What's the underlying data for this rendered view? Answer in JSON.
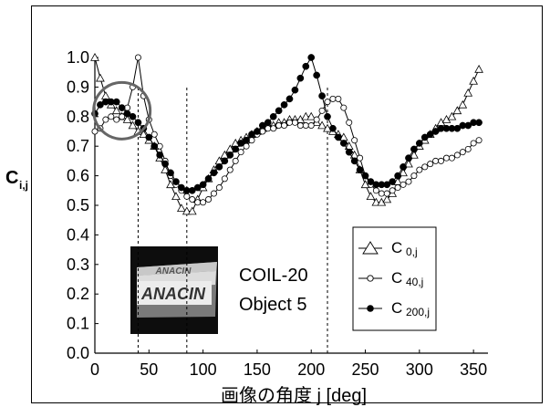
{
  "chart_data": {
    "type": "line",
    "title": "",
    "xlabel": "画像の角度 j [deg]",
    "ylabel_main": "C",
    "ylabel_sub": "i,j",
    "xlim": [
      0,
      360
    ],
    "ylim": [
      0,
      1.0
    ],
    "xticks": [
      "0",
      "50",
      "100",
      "150",
      "200",
      "250",
      "300",
      "350"
    ],
    "yticks": [
      "0.0",
      "0.1",
      "0.2",
      "0.3",
      "0.4",
      "0.5",
      "0.6",
      "0.7",
      "0.8",
      "0.9",
      "1.0"
    ],
    "vlines": [
      40,
      85,
      215
    ],
    "highlight_circle": {
      "x": 25,
      "y": 0.82
    },
    "annotation": [
      "COIL-20",
      "Object 5"
    ],
    "inset_image_text": [
      "ANACIN",
      "ANACIN"
    ],
    "legend_position": "right-lower",
    "series": [
      {
        "legend_main": "C",
        "legend_sub": "0,j",
        "marker": "triangle",
        "x": [
          0,
          5,
          10,
          15,
          20,
          25,
          30,
          35,
          40,
          45,
          50,
          55,
          60,
          65,
          70,
          75,
          80,
          85,
          90,
          95,
          100,
          105,
          110,
          115,
          120,
          125,
          130,
          135,
          140,
          145,
          150,
          155,
          160,
          165,
          170,
          175,
          180,
          185,
          190,
          195,
          200,
          205,
          210,
          215,
          220,
          225,
          230,
          235,
          240,
          245,
          250,
          255,
          260,
          265,
          270,
          275,
          280,
          285,
          290,
          295,
          300,
          305,
          310,
          315,
          320,
          325,
          330,
          335,
          340,
          345,
          350,
          355
        ],
        "values": [
          1.0,
          0.93,
          0.87,
          0.84,
          0.82,
          0.8,
          0.79,
          0.77,
          0.75,
          0.74,
          0.72,
          0.7,
          0.66,
          0.62,
          0.57,
          0.53,
          0.49,
          0.48,
          0.48,
          0.52,
          0.56,
          0.59,
          0.62,
          0.65,
          0.67,
          0.69,
          0.71,
          0.72,
          0.73,
          0.74,
          0.75,
          0.76,
          0.77,
          0.77,
          0.78,
          0.78,
          0.79,
          0.79,
          0.79,
          0.8,
          0.8,
          0.78,
          0.77,
          0.76,
          0.75,
          0.74,
          0.73,
          0.7,
          0.67,
          0.62,
          0.57,
          0.53,
          0.51,
          0.51,
          0.52,
          0.54,
          0.58,
          0.61,
          0.64,
          0.67,
          0.7,
          0.72,
          0.74,
          0.76,
          0.78,
          0.79,
          0.8,
          0.82,
          0.84,
          0.88,
          0.92,
          0.96
        ]
      },
      {
        "legend_main": "C",
        "legend_sub": "40,j",
        "marker": "open-circle",
        "x": [
          0,
          5,
          10,
          15,
          20,
          25,
          30,
          35,
          40,
          45,
          50,
          55,
          60,
          65,
          70,
          75,
          80,
          85,
          90,
          95,
          100,
          105,
          110,
          115,
          120,
          125,
          130,
          135,
          140,
          145,
          150,
          155,
          160,
          165,
          170,
          175,
          180,
          185,
          190,
          195,
          200,
          205,
          210,
          215,
          220,
          225,
          230,
          235,
          240,
          245,
          250,
          255,
          260,
          265,
          270,
          275,
          280,
          285,
          290,
          295,
          300,
          305,
          310,
          315,
          320,
          325,
          330,
          335,
          340,
          345,
          350,
          355
        ],
        "values": [
          0.75,
          0.76,
          0.79,
          0.8,
          0.79,
          0.8,
          0.83,
          0.9,
          1.0,
          0.87,
          0.79,
          0.74,
          0.7,
          0.65,
          0.6,
          0.57,
          0.55,
          0.53,
          0.52,
          0.51,
          0.51,
          0.52,
          0.54,
          0.56,
          0.59,
          0.62,
          0.65,
          0.68,
          0.7,
          0.72,
          0.74,
          0.75,
          0.76,
          0.76,
          0.77,
          0.77,
          0.78,
          0.78,
          0.77,
          0.77,
          0.77,
          0.79,
          0.82,
          0.85,
          0.86,
          0.86,
          0.83,
          0.78,
          0.72,
          0.66,
          0.6,
          0.57,
          0.55,
          0.54,
          0.54,
          0.55,
          0.56,
          0.57,
          0.58,
          0.6,
          0.62,
          0.63,
          0.64,
          0.65,
          0.65,
          0.66,
          0.66,
          0.67,
          0.68,
          0.69,
          0.71,
          0.72
        ]
      },
      {
        "legend_main": "C",
        "legend_sub": "200,j",
        "marker": "filled-circle",
        "x": [
          0,
          5,
          10,
          15,
          20,
          25,
          30,
          35,
          40,
          45,
          50,
          55,
          60,
          65,
          70,
          75,
          80,
          85,
          90,
          95,
          100,
          105,
          110,
          115,
          120,
          125,
          130,
          135,
          140,
          145,
          150,
          155,
          160,
          165,
          170,
          175,
          180,
          185,
          190,
          195,
          200,
          205,
          210,
          215,
          220,
          225,
          230,
          235,
          240,
          245,
          250,
          255,
          260,
          265,
          270,
          275,
          280,
          285,
          290,
          295,
          300,
          305,
          310,
          315,
          320,
          325,
          330,
          335,
          340,
          345,
          350,
          355
        ],
        "values": [
          0.81,
          0.84,
          0.85,
          0.85,
          0.85,
          0.83,
          0.81,
          0.8,
          0.78,
          0.76,
          0.73,
          0.7,
          0.67,
          0.64,
          0.61,
          0.58,
          0.56,
          0.55,
          0.55,
          0.56,
          0.57,
          0.59,
          0.61,
          0.63,
          0.65,
          0.67,
          0.69,
          0.71,
          0.72,
          0.74,
          0.75,
          0.77,
          0.78,
          0.8,
          0.82,
          0.84,
          0.86,
          0.89,
          0.93,
          0.97,
          1.0,
          0.94,
          0.87,
          0.8,
          0.76,
          0.73,
          0.71,
          0.68,
          0.65,
          0.62,
          0.6,
          0.58,
          0.57,
          0.57,
          0.57,
          0.58,
          0.6,
          0.63,
          0.66,
          0.69,
          0.71,
          0.73,
          0.74,
          0.75,
          0.76,
          0.76,
          0.76,
          0.76,
          0.77,
          0.77,
          0.78,
          0.78
        ]
      }
    ]
  }
}
